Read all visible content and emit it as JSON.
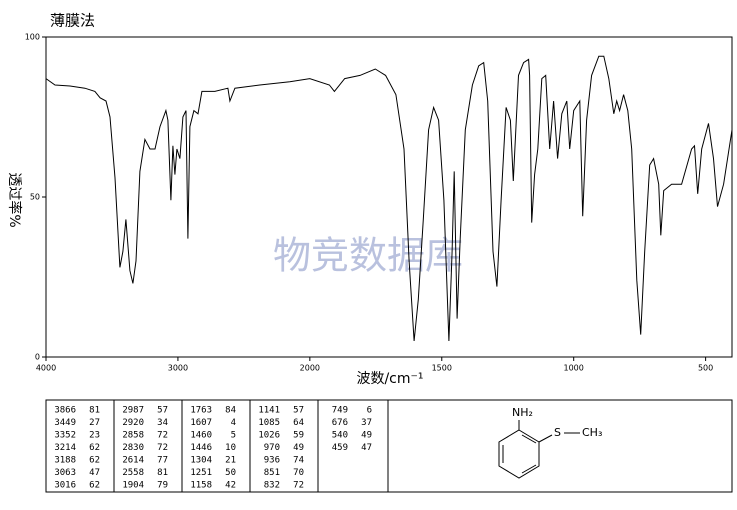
{
  "chart_data": {
    "type": "line",
    "title": "薄膜法",
    "x_label": "波数/cm⁻¹",
    "y_label": "透过率%",
    "watermark": "物竞数据库",
    "color": "#000000",
    "xlim": [
      4000,
      400
    ],
    "xticks": [
      4000,
      3000,
      2000,
      1500,
      1000,
      500
    ],
    "ylim": [
      0,
      100
    ],
    "yticks": [
      0,
      50,
      100
    ],
    "x": [
      4000,
      3932,
      3818,
      3705,
      3629,
      3590,
      3545,
      3515,
      3477,
      3440,
      3417,
      3394,
      3364,
      3341,
      3318,
      3288,
      3250,
      3212,
      3174,
      3136,
      3091,
      3076,
      3053,
      3038,
      3023,
      3008,
      2985,
      2962,
      2939,
      2924,
      2909,
      2879,
      2848,
      2818,
      2720,
      2621,
      2606,
      2568,
      2379,
      2152,
      2000,
      1926,
      1907,
      1868,
      1810,
      1752,
      1713,
      1674,
      1643,
      1624,
      1605,
      1589,
      1570,
      1550,
      1531,
      1512,
      1492,
      1473,
      1461,
      1453,
      1442,
      1430,
      1411,
      1384,
      1360,
      1341,
      1326,
      1306,
      1291,
      1275,
      1256,
      1240,
      1229,
      1209,
      1190,
      1171,
      1167,
      1159,
      1148,
      1136,
      1121,
      1106,
      1091,
      1076,
      1061,
      1045,
      1026,
      1015,
      1000,
      977,
      966,
      951,
      932,
      905,
      886,
      867,
      848,
      837,
      826,
      811,
      795,
      780,
      761,
      746,
      731,
      712,
      697,
      678,
      670,
      659,
      629,
      591,
      553,
      542,
      530,
      515,
      489,
      470,
      455,
      432,
      400
    ],
    "values": [
      87,
      85,
      84.7,
      84,
      83,
      81,
      80,
      75,
      56,
      28,
      33,
      43,
      27,
      23,
      30,
      58,
      68,
      65,
      65,
      72,
      77,
      74,
      49,
      66,
      57,
      65,
      62,
      75,
      77,
      37,
      72,
      77,
      76,
      83,
      83,
      84,
      80,
      84,
      85,
      86,
      87,
      85,
      83,
      87,
      88,
      90,
      88,
      82,
      65,
      30,
      5,
      18,
      43,
      71,
      78,
      74,
      49,
      5,
      33,
      58,
      12,
      37,
      71,
      85,
      91,
      92,
      80,
      33,
      22,
      49,
      78,
      74,
      55,
      88,
      92,
      93,
      88,
      42,
      57,
      65,
      87,
      88,
      65,
      80,
      62,
      76,
      80,
      65,
      77,
      80,
      44,
      74,
      88,
      94,
      94,
      87,
      76,
      80,
      77,
      82,
      77,
      65,
      24,
      7,
      33,
      60,
      62,
      54,
      38,
      52,
      54,
      54,
      65,
      66,
      51,
      65,
      73,
      62,
      47,
      54,
      71
    ]
  },
  "peak_table": [
    [
      [
        3866,
        81
      ],
      [
        3449,
        27
      ],
      [
        3352,
        23
      ],
      [
        3214,
        62
      ],
      [
        3188,
        62
      ],
      [
        3063,
        47
      ],
      [
        3016,
        62
      ]
    ],
    [
      [
        2987,
        57
      ],
      [
        2920,
        34
      ],
      [
        2858,
        72
      ],
      [
        2830,
        72
      ],
      [
        2614,
        77
      ],
      [
        2558,
        81
      ],
      [
        1904,
        79
      ]
    ],
    [
      [
        1763,
        84
      ],
      [
        1607,
        4
      ],
      [
        1460,
        5
      ],
      [
        1446,
        10
      ],
      [
        1304,
        21
      ],
      [
        1251,
        50
      ],
      [
        1158,
        42
      ]
    ],
    [
      [
        1141,
        57
      ],
      [
        1085,
        64
      ],
      [
        1026,
        59
      ],
      [
        970,
        49
      ],
      [
        936,
        74
      ],
      [
        851,
        70
      ],
      [
        832,
        72
      ]
    ],
    [
      [
        749,
        6
      ],
      [
        676,
        37
      ],
      [
        540,
        49
      ],
      [
        459,
        47
      ]
    ]
  ],
  "structure": {
    "amine": "NH₂",
    "sulfur": "S",
    "methyl": "CH₃"
  }
}
